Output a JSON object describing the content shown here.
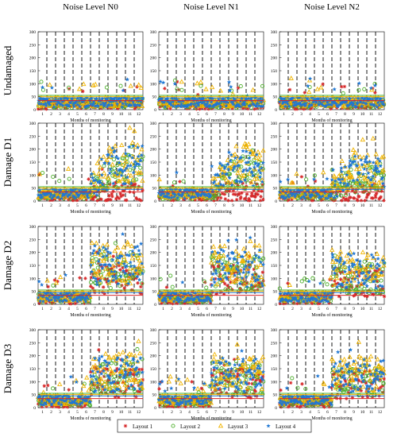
{
  "chart_data": {
    "type": "scatter",
    "column_titles": [
      "Noise Level N0",
      "Noise Level N1",
      "Noise Level N2"
    ],
    "row_titles": [
      "Undamaged",
      "Damage D1",
      "Damage D2",
      "Damage D3"
    ],
    "xlabel": "Months of monitoring",
    "ylim": [
      0,
      300
    ],
    "xlim": [
      0,
      12
    ],
    "y_ticks": [
      0,
      50,
      100,
      150,
      200,
      250,
      300
    ],
    "x_ticks": [
      1,
      2,
      3,
      4,
      5,
      6,
      7,
      8,
      9,
      10,
      11,
      12
    ],
    "grid": "dashed vertical lines at month boundaries",
    "damage_onset_month": 6,
    "legend_position": "bottom",
    "series": [
      {
        "name": "Layout 1",
        "marker": "asterisk",
        "color": "#d62728",
        "baseline": 20,
        "threshold": 35,
        "post_damage_mean": [
          [
            null,
            null,
            null
          ],
          [
            40,
            35,
            30
          ],
          [
            100,
            95,
            85
          ],
          [
            100,
            95,
            90
          ]
        ]
      },
      {
        "name": "Layout 2",
        "marker": "circle",
        "color": "#4caf2a",
        "baseline": 25,
        "threshold": 55,
        "post_damage_mean": [
          [
            null,
            null,
            null
          ],
          [
            120,
            110,
            90
          ],
          [
            130,
            120,
            100
          ],
          [
            120,
            115,
            105
          ]
        ]
      },
      {
        "name": "Layout 3",
        "marker": "triangle",
        "color": "#f0b400",
        "baseline": 30,
        "threshold": 50,
        "post_damage_mean": [
          [
            null,
            null,
            null
          ],
          [
            150,
            140,
            130
          ],
          [
            160,
            150,
            140
          ],
          [
            140,
            135,
            130
          ]
        ]
      },
      {
        "name": "Layout 4",
        "marker": "star",
        "color": "#1f77d4",
        "baseline": 28,
        "threshold": 45,
        "post_damage_mean": [
          [
            null,
            null,
            null
          ],
          [
            140,
            125,
            110
          ],
          [
            150,
            140,
            130
          ],
          [
            130,
            125,
            120
          ]
        ]
      }
    ]
  }
}
